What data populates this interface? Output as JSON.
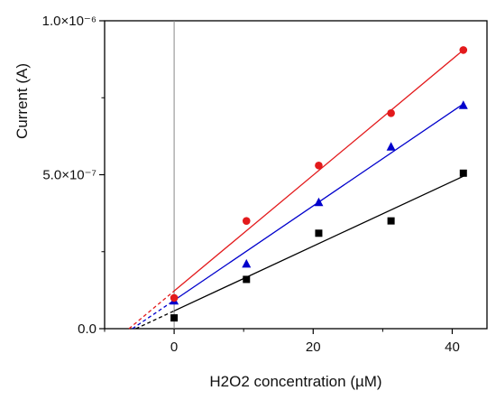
{
  "chart_data": {
    "type": "scatter",
    "xlabel": "H2O2 concentration (µM)",
    "ylabel": "Current (A)",
    "xlim": [
      -10,
      45
    ],
    "ylim": [
      0,
      1e-06
    ],
    "x_ticks": [
      0,
      20,
      40
    ],
    "x_tick_labels": [
      "0",
      "20",
      "40"
    ],
    "y_ticks": [
      0,
      5e-07,
      1e-06
    ],
    "y_tick_labels": [
      "0.0",
      "5.0×10⁻⁷",
      "1.0×10⁻⁶"
    ],
    "vertical_reference_x": 0,
    "series": [
      {
        "marker": "square",
        "color": "#000000",
        "x": [
          0,
          10.4,
          20.8,
          31.2,
          41.6
        ],
        "y": [
          3.5e-08,
          1.6e-07,
          3.1e-07,
          3.5e-07,
          5.05e-07
        ],
        "fit": {
          "x_intercept": -5.5,
          "x_end": 41.6,
          "y_start": 0,
          "y_end": 4.95e-07
        }
      },
      {
        "marker": "triangle",
        "color": "#0000cc",
        "x": [
          0,
          10.4,
          20.8,
          31.2,
          41.6
        ],
        "y": [
          9e-08,
          2.1e-07,
          4.1e-07,
          5.9e-07,
          7.25e-07
        ],
        "fit": {
          "x_intercept": -6.0,
          "x_end": 41.6,
          "y_start": 0,
          "y_end": 7.3e-07
        }
      },
      {
        "marker": "circle",
        "color": "#e31a1c",
        "x": [
          0,
          10.4,
          20.8,
          31.2,
          41.6
        ],
        "y": [
          1e-07,
          3.5e-07,
          5.3e-07,
          7e-07,
          9.05e-07
        ],
        "fit": {
          "x_intercept": -6.5,
          "x_end": 41.6,
          "y_start": 0,
          "y_end": 9.05e-07
        }
      }
    ]
  }
}
